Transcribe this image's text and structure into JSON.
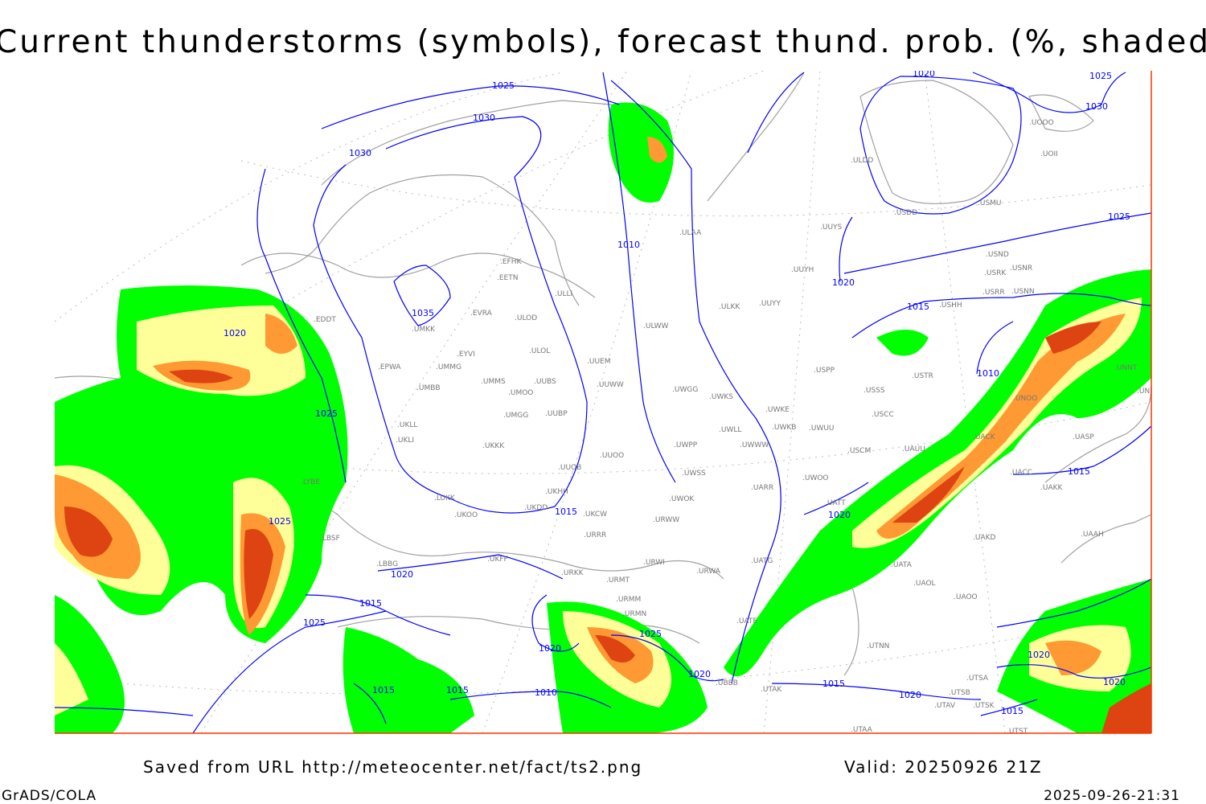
{
  "title": "Current thunderstorms (symbols), forecast thund. prob. (%, shaded)",
  "footer": {
    "source": "Saved from URL http://meteocenter.net/fact/ts2.png",
    "valid": "Valid: 20250926 21Z",
    "software": "GrADS/COLA",
    "timestamp": "2025-09-26-21:31"
  },
  "colors": {
    "prob_low": "#00ff00",
    "prob_mid": "#ffff99",
    "prob_high": "#ff9933",
    "prob_max": "#dd4411",
    "isobars": "#0000ff",
    "coastlines": "#a0a0a0",
    "frame": "#ff3300"
  },
  "isobar_labels": [
    "1025",
    "1030",
    "1030",
    "1035",
    "1020",
    "1025",
    "1020",
    "1025",
    "1030",
    "1025",
    "1020",
    "1015",
    "1010",
    "1015",
    "1020",
    "1010",
    "1015",
    "1025",
    "1020",
    "1015",
    "1025",
    "1020",
    "1020",
    "1015",
    "1010",
    "1015",
    "1020",
    "1015",
    "1020",
    "1020",
    "1015",
    "1025"
  ],
  "stations": [
    "EDDT",
    "EFHK",
    "EETN",
    "EVRA",
    "ULOD",
    "ULLI",
    "UMKK",
    "EYVI",
    "ULOL",
    "UUEM",
    "EPWA",
    "UMMG",
    "UMMS",
    "UMOO",
    "UUBS",
    "UUWW",
    "UMBB",
    "UMGG",
    "UUBP",
    "UKLL",
    "UKLI",
    "UKKK",
    "UUOO",
    "UUOB",
    "LUKK",
    "UKHH",
    "UKFF",
    "UKOO",
    "UKDD",
    "UKCW",
    "URRR",
    "LBBG",
    "URKK",
    "URMT",
    "URMM",
    "URMN",
    "URWI",
    "URWA",
    "UBBB",
    "UATG",
    "UATE",
    "UATT",
    "UTAK",
    "UTAA",
    "LBSF",
    "LYBE",
    "ULAA",
    "UUYS",
    "UUYH",
    "UUYY",
    "ULKK",
    "ULWW",
    "UWGG",
    "UWKS",
    "UWKE",
    "UWLL",
    "UWKB",
    "UWUU",
    "UWWW",
    "UWPP",
    "UWSS",
    "UWOO",
    "UARR",
    "UWOK",
    "URWW",
    "USPP",
    "USSS",
    "USCC",
    "USCM",
    "UAUU",
    "UACK",
    "USTR",
    "USHH",
    "USRR",
    "USNN",
    "USRK",
    "USNR",
    "USND",
    "USDD",
    "USMU",
    "ULDD",
    "UOOO",
    "UOII",
    "UNNT",
    "UNBB",
    "UASP",
    "UACC",
    "UAKK",
    "UAAH",
    "UAKD",
    "UATA",
    "UAOL",
    "UAOO",
    "UTNN",
    "UTSA",
    "UTSB",
    "UTAV",
    "UTSK",
    "UTST",
    "UNOO"
  ]
}
